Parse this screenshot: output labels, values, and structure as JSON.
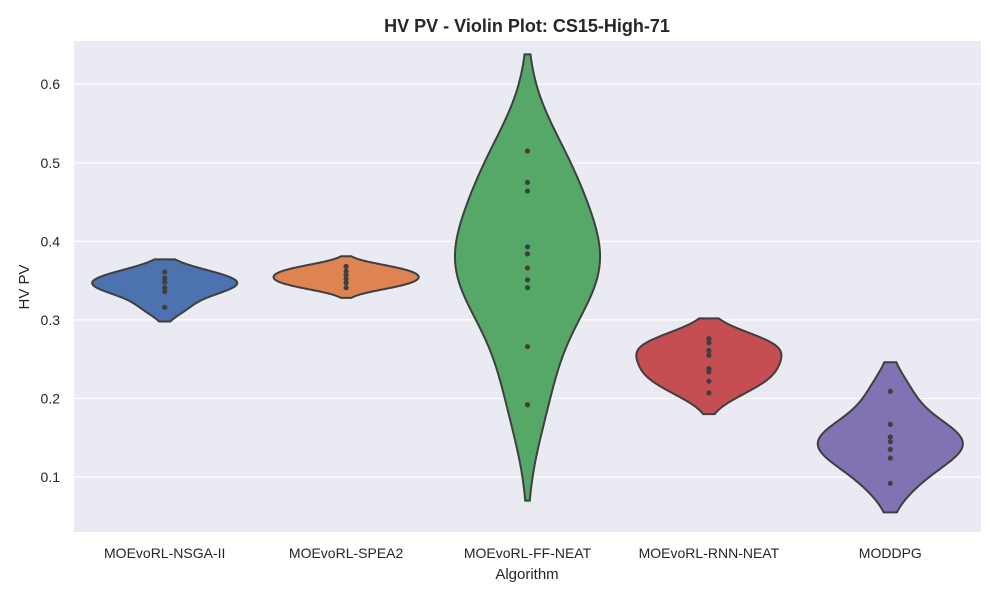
{
  "chart_data": {
    "type": "violin",
    "title": "HV PV - Violin Plot: CS15-High-71",
    "xlabel": "Algorithm",
    "ylabel": "HV PV",
    "ylim": [
      0.03,
      0.655
    ],
    "yticks": [
      0.1,
      0.2,
      0.3,
      0.4,
      0.5,
      0.6
    ],
    "grid": true,
    "background": "#eaeaf2",
    "categories": [
      "MOEvoRL-NSGA-II",
      "MOEvoRL-SPEA2",
      "MOEvoRL-FF-NEAT",
      "MOEvoRL-RNN-NEAT",
      "MODDPG"
    ],
    "series": [
      {
        "category": "MOEvoRL-NSGA-II",
        "color": "#4c72b0",
        "range": [
          0.298,
          0.377
        ],
        "points": [
          0.361,
          0.353,
          0.348,
          0.341,
          0.336,
          0.316
        ]
      },
      {
        "category": "MOEvoRL-SPEA2",
        "color": "#dd8452",
        "range": [
          0.328,
          0.381
        ],
        "points": [
          0.368,
          0.362,
          0.357,
          0.352,
          0.347,
          0.341
        ]
      },
      {
        "category": "MOEvoRL-FF-NEAT",
        "color": "#55a868",
        "range": [
          0.07,
          0.638
        ],
        "points": [
          0.515,
          0.475,
          0.464,
          0.393,
          0.384,
          0.366,
          0.351,
          0.341,
          0.266,
          0.192
        ]
      },
      {
        "category": "MOEvoRL-RNN-NEAT",
        "color": "#c44e52",
        "range": [
          0.18,
          0.302
        ],
        "points": [
          0.276,
          0.271,
          0.261,
          0.255,
          0.238,
          0.234,
          0.222,
          0.207
        ]
      },
      {
        "category": "MODDPG",
        "color": "#8172b3",
        "range": [
          0.055,
          0.246
        ],
        "points": [
          0.209,
          0.167,
          0.151,
          0.145,
          0.135,
          0.124,
          0.092
        ]
      }
    ]
  }
}
